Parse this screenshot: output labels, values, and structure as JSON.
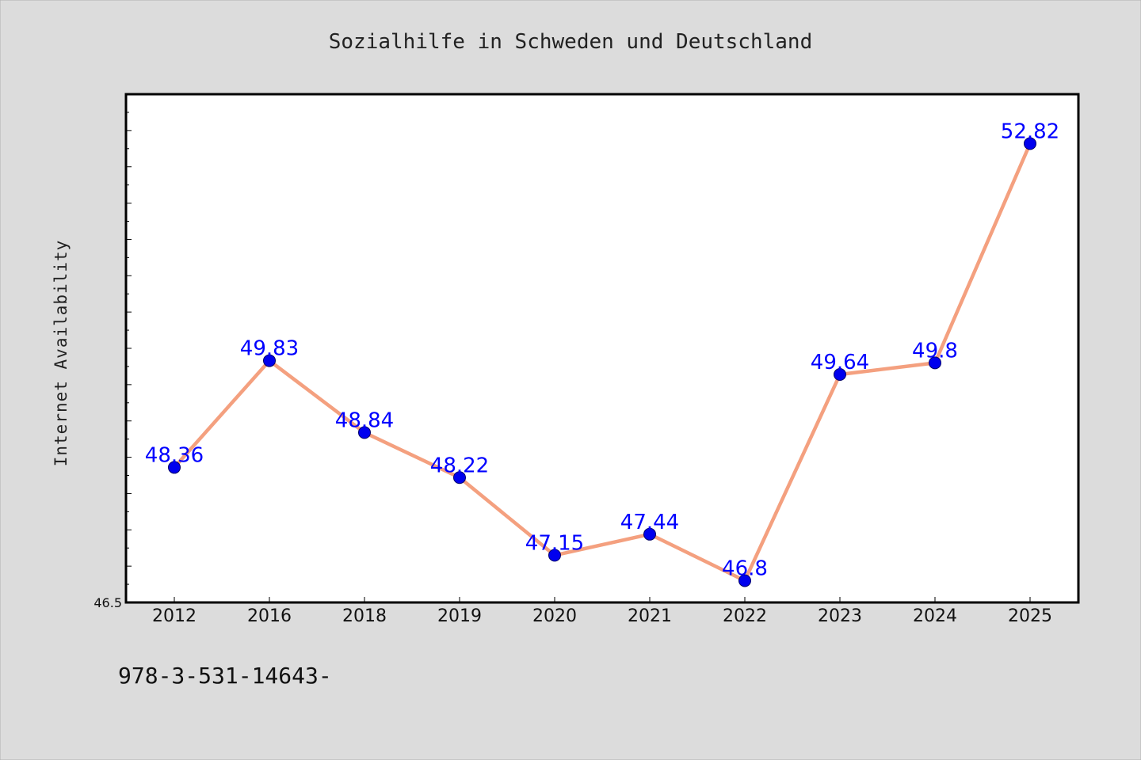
{
  "chart_data": {
    "type": "line",
    "title": "Sozialhilfe in Schweden und Deutschland",
    "xlabel": "",
    "ylabel": "Internet Availability",
    "categories": [
      "2012",
      "2016",
      "2018",
      "2019",
      "2020",
      "2021",
      "2022",
      "2023",
      "2024",
      "2025"
    ],
    "series": [
      {
        "values": [
          48.36,
          49.83,
          48.84,
          48.22,
          47.15,
          47.44,
          46.8,
          49.64,
          49.8,
          52.82
        ],
        "labels": [
          "48.36",
          "49.83",
          "48.84",
          "48.22",
          "47.15",
          "47.44",
          "46.8",
          "49.64",
          "49.8",
          "52.82"
        ],
        "line_color": "#f4a07f",
        "marker_color": "#0000ee"
      }
    ],
    "ylim": [
      46.5,
      53.5
    ],
    "y_tick_labels": [
      "46.5"
    ],
    "grid": false,
    "legend": "none"
  },
  "footnote": "978-3-531-14643-",
  "colors": {
    "background": "#dcdcdc",
    "plot_background": "#ffffff",
    "data_label": "#0000ff"
  }
}
